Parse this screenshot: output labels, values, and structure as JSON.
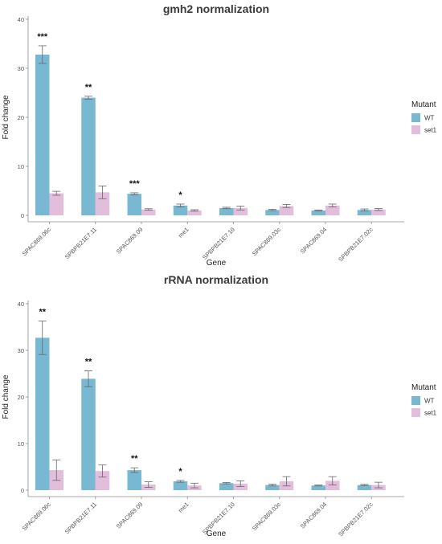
{
  "chart_data": [
    {
      "type": "bar",
      "title": "gmh2 normalization",
      "xlabel": "Gene",
      "ylabel": "Fold change",
      "ylim": [
        0,
        40
      ],
      "yticks": [
        0,
        10,
        20,
        30,
        40
      ],
      "categories": [
        "SPAC869.06c",
        "SPBPB21E7.11",
        "SPAC869.09",
        "me1",
        "SPBPB21E7.10",
        "SPAC869.03c",
        "SPAC869.04",
        "SPBPB21E7.02c"
      ],
      "series": [
        {
          "name": "WT",
          "color": "#78b8d2",
          "values": [
            32.8,
            24.0,
            4.4,
            2.0,
            1.5,
            1.1,
            1.0,
            1.1
          ],
          "errors": [
            1.8,
            0.3,
            0.2,
            0.3,
            0.15,
            0.15,
            0.1,
            0.2
          ]
        },
        {
          "name": "set1",
          "color": "#e2bedc",
          "values": [
            4.5,
            4.7,
            1.2,
            1.0,
            1.5,
            1.9,
            2.0,
            1.2
          ],
          "errors": [
            0.4,
            1.3,
            0.15,
            0.15,
            0.4,
            0.3,
            0.3,
            0.2
          ]
        }
      ],
      "significance": [
        "***",
        "**",
        "***",
        "*",
        "",
        "",
        "",
        ""
      ],
      "legend": {
        "title": "Mutant",
        "position": "right"
      },
      "grid": false
    },
    {
      "type": "bar",
      "title": "rRNA normalization",
      "xlabel": "Gene",
      "ylabel": "Fold change",
      "ylim": [
        0,
        40
      ],
      "yticks": [
        0,
        10,
        20,
        30,
        40
      ],
      "categories": [
        "SPAC869.06c",
        "SPBPB21E7.11",
        "SPAC869.09",
        "me1",
        "SPBPB21E7.10",
        "SPAC869.03c",
        "SPAC869.04",
        "SPBPB21E7.02c"
      ],
      "series": [
        {
          "name": "WT",
          "color": "#78b8d2",
          "values": [
            32.7,
            23.9,
            4.3,
            1.9,
            1.5,
            1.1,
            1.0,
            1.1
          ],
          "errors": [
            3.6,
            1.7,
            0.5,
            0.2,
            0.15,
            0.2,
            0.1,
            0.15
          ]
        },
        {
          "name": "set1",
          "color": "#e2bedc",
          "values": [
            4.3,
            4.1,
            1.2,
            1.0,
            1.4,
            1.9,
            2.0,
            1.1
          ],
          "errors": [
            2.2,
            1.3,
            0.6,
            0.5,
            0.6,
            1.0,
            0.9,
            0.6
          ]
        }
      ],
      "significance": [
        "**",
        "**",
        "**",
        "*",
        "",
        "",
        "",
        ""
      ],
      "legend": {
        "title": "Mutant",
        "position": "right"
      },
      "grid": false
    }
  ]
}
